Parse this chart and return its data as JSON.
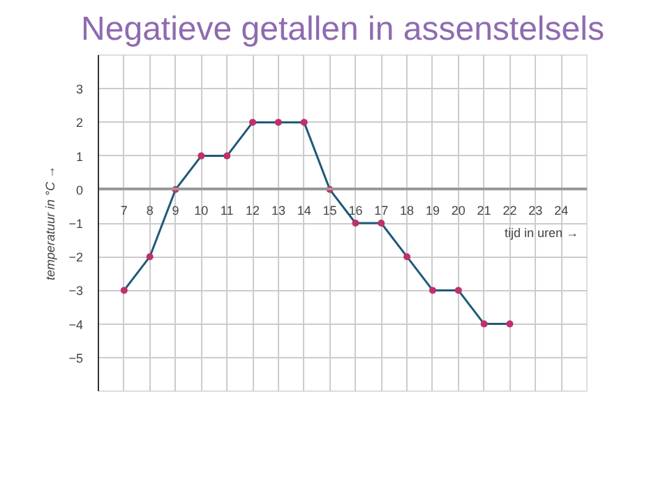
{
  "chart_data": {
    "type": "line",
    "title": "Negatieve getallen in assenstelsels",
    "xlabel": "tijd in uren →",
    "ylabel": "temperatuur in °C →",
    "x": [
      7,
      8,
      9,
      10,
      11,
      12,
      13,
      14,
      15,
      16,
      17,
      18,
      19,
      20,
      21,
      22
    ],
    "series": [
      {
        "color": "#1f5a78",
        "colors": [
          "#c0306a",
          "#c0306a",
          "#c0306a",
          "#c0306a",
          "#c0306a",
          "#c0306a",
          "#c0306a",
          "#c0306a",
          "#c0306a",
          "#c0306a",
          "#c0306a",
          "#c0306a",
          "#c0306a",
          "#c0306a",
          "#c0306a",
          "#c0306a"
        ],
        "values": [
          -3,
          -2,
          0,
          1,
          1,
          2,
          2,
          2,
          0,
          -1,
          -1,
          -2,
          -3,
          -3,
          -4,
          -4
        ]
      }
    ],
    "xlim": [
      6,
      25
    ],
    "ylim": [
      -6,
      4
    ],
    "xticks": [
      7,
      8,
      9,
      10,
      11,
      12,
      13,
      14,
      15,
      16,
      17,
      18,
      19,
      20,
      21,
      22,
      23,
      24
    ],
    "yticks": [
      -5,
      -4,
      -3,
      -2,
      -1,
      0,
      1,
      2,
      3
    ],
    "grid": true,
    "marker": "circle",
    "line_style": "solid"
  }
}
